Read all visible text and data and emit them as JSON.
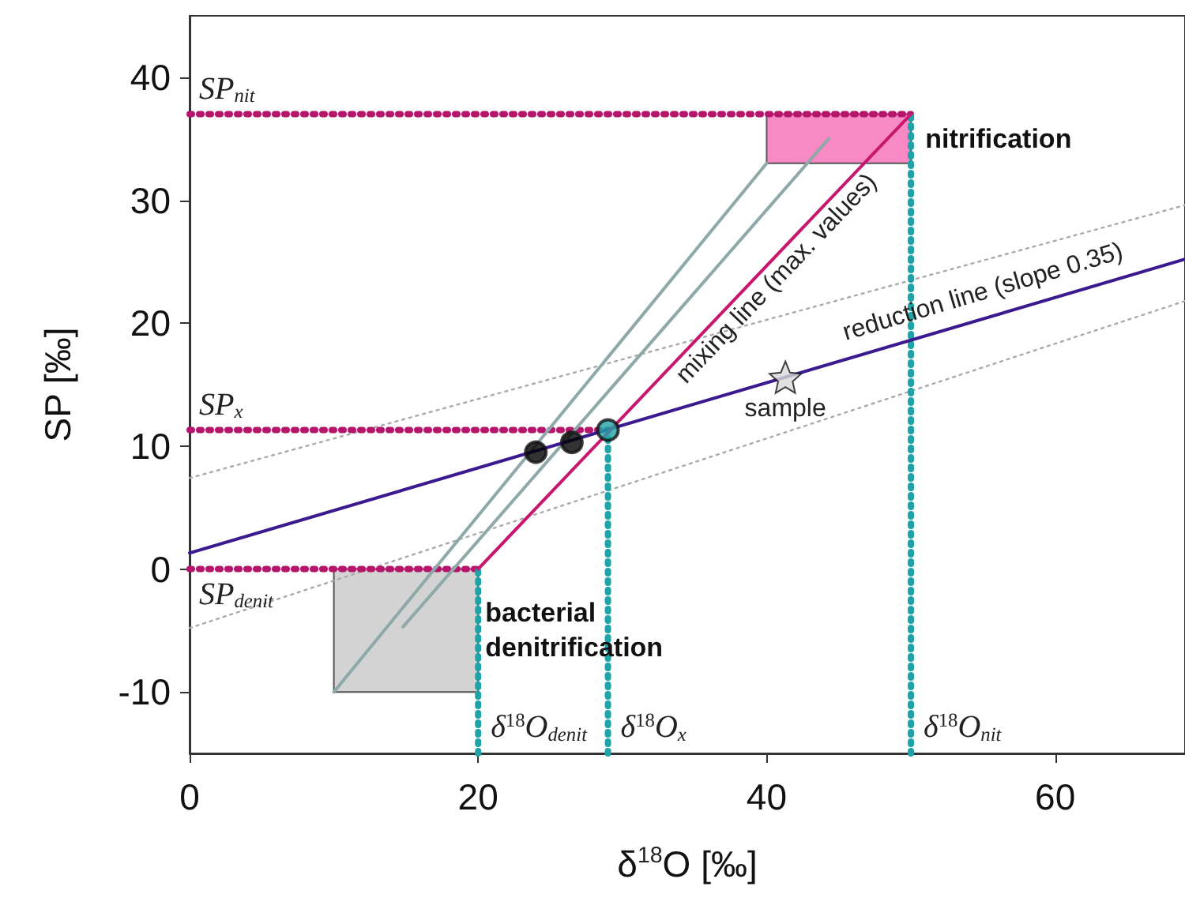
{
  "chart_data": {
    "type": "line",
    "xlabel": "δ$^{18}$O [‰]",
    "ylabel": "SP [‰]",
    "xlim": [
      0,
      69
    ],
    "ylim": [
      -15,
      45
    ],
    "xticks": [
      0,
      20,
      40,
      60
    ],
    "yticks": [
      -10,
      0,
      10,
      20,
      30,
      40
    ],
    "legend": false,
    "series": [
      {
        "type": "histogram",
        "color": "#d3d3d3",
        "bins": [
          10,
          20
        ],
        "base": [
          -10
        ],
        "values": [
          10
        ]
      },
      {
        "type": "histogram",
        "color": "#f78ac5",
        "bins": [
          40,
          50
        ],
        "base": [
          33
        ],
        "values": [
          4
        ]
      },
      {
        "color": "#aaaaaa",
        "line_style": "dotted",
        "marker": "none",
        "x": [
          0,
          69
        ],
        "values": [
          7.4,
          29.6
        ]
      },
      {
        "color": "#aaaaaa",
        "line_style": "dotted",
        "marker": "none",
        "x": [
          0,
          69
        ],
        "values": [
          -4.8,
          21.8
        ]
      },
      {
        "color": "#8fa8a8",
        "line_style": "solid",
        "marker": "none",
        "x": [
          10,
          40
        ],
        "values": [
          -10,
          33
        ]
      },
      {
        "color": "#8fa8a8",
        "line_style": "solid",
        "marker": "none",
        "x": [
          14.8,
          44.3
        ],
        "values": [
          -4.7,
          35
        ]
      },
      {
        "color": "#3b1a8f",
        "line_style": "solid",
        "marker": "none",
        "x": [
          0,
          69
        ],
        "values": [
          1.3,
          25.2
        ]
      },
      {
        "color": "#c8176f",
        "line_style": "solid",
        "marker": "none",
        "x": [
          20,
          50
        ],
        "values": [
          0,
          37
        ]
      },
      {
        "name": "SP$_{nit}$",
        "color": "#b5156a",
        "line_style": "dotted",
        "marker": "none",
        "x": [
          0,
          50
        ],
        "values": [
          37,
          37
        ]
      },
      {
        "name": "SP$_{x}$",
        "color": "#b5156a",
        "line_style": "dotted",
        "marker": "none",
        "x": [
          0,
          29
        ],
        "values": [
          11.3,
          11.3
        ]
      },
      {
        "name": "SP$_{denit}$",
        "color": "#b5156a",
        "line_style": "dotted",
        "marker": "none",
        "x": [
          0,
          20
        ],
        "values": [
          0,
          0
        ]
      },
      {
        "name": "δ$^{18}$O$_{denit}$",
        "color": "#1fa3a8",
        "line_style": "dotted",
        "marker": "none",
        "x": [
          20,
          20
        ],
        "values": [
          -15,
          0
        ]
      },
      {
        "name": "δ$^{18}$O$_{x}$",
        "color": "#1fa3a8",
        "line_style": "dotted",
        "marker": "none",
        "x": [
          29,
          29
        ],
        "values": [
          -15,
          11.3
        ]
      },
      {
        "name": "δ$^{18}$O$_{nit}$",
        "color": "#1fa3a8",
        "line_style": "dotted",
        "marker": "none",
        "x": [
          50,
          50
        ],
        "values": [
          -15,
          37
        ]
      },
      {
        "type": "scatter",
        "color": "#000000",
        "marker": "circle",
        "x": [
          24,
          26.5
        ],
        "values": [
          9.5,
          10.3
        ]
      },
      {
        "type": "scatter",
        "color": "#1fa3a8",
        "marker": "circle",
        "x": [
          29
        ],
        "values": [
          11.3
        ]
      },
      {
        "type": "scatter",
        "name": "sample",
        "color": "#d9d9d9",
        "marker": "star",
        "x": [
          41.3
        ],
        "values": [
          15.6
        ]
      }
    ],
    "annotations": [
      "nitrification",
      {
        "text": "bacterial denitrification",
        "x": 20,
        "y": -5
      },
      "mixing line (max. values)",
      "reduction line (slope 0.35)"
    ]
  }
}
